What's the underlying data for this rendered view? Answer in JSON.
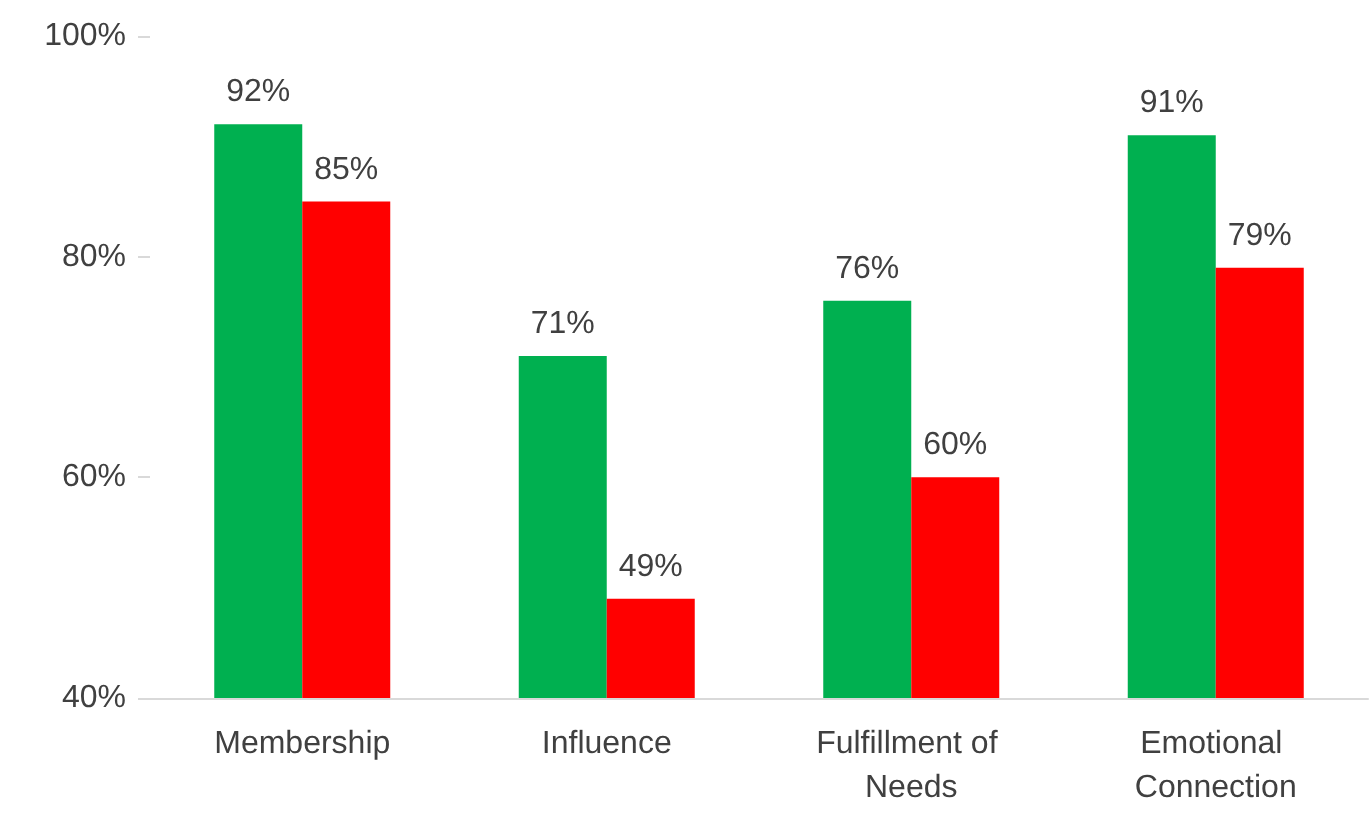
{
  "chart_data": {
    "type": "bar",
    "categories": [
      "Membership",
      "Influence",
      "Fulfillment of Needs",
      "Emotional Connection"
    ],
    "series": [
      {
        "color": "#00b050",
        "values": [
          92,
          71,
          76,
          91
        ],
        "value_labels": [
          "92%",
          "71%",
          "76%",
          "91%"
        ]
      },
      {
        "color": "#ff0000",
        "values": [
          85,
          49,
          60,
          79
        ],
        "value_labels": [
          "85%",
          "49%",
          "60%",
          "79%"
        ]
      }
    ],
    "ylim": [
      40,
      100
    ],
    "yticks": [
      {
        "value": 40,
        "label": "40%"
      },
      {
        "value": 60,
        "label": "60%"
      },
      {
        "value": 80,
        "label": "80%"
      },
      {
        "value": 100,
        "label": "100%"
      }
    ],
    "grid": false
  }
}
